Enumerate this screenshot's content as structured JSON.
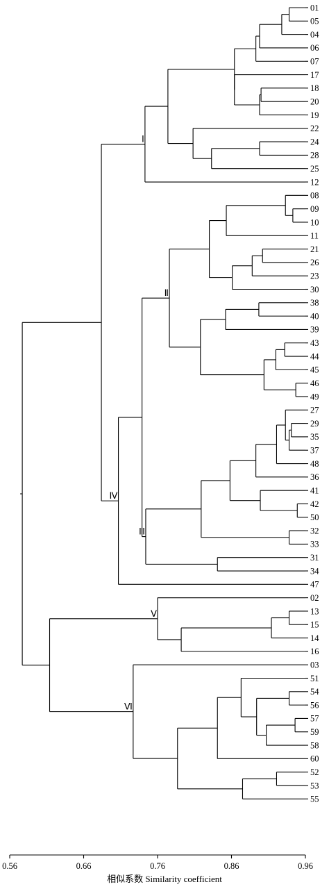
{
  "chart_data": {
    "type": "dendrogram",
    "xlabel": "相似系数 Similarity coefficient",
    "xlim": [
      0.56,
      0.96
    ],
    "ticks": [
      "0.56",
      "0.66",
      "0.76",
      "0.86",
      "0.96"
    ],
    "leaves": [
      "01",
      "05",
      "04",
      "06",
      "07",
      "17",
      "18",
      "20",
      "19",
      "22",
      "24",
      "28",
      "25",
      "12",
      "08",
      "09",
      "10",
      "11",
      "21",
      "26",
      "23",
      "30",
      "38",
      "40",
      "39",
      "43",
      "44",
      "45",
      "46",
      "49",
      "27",
      "29",
      "35",
      "37",
      "48",
      "36",
      "41",
      "42",
      "50",
      "32",
      "33",
      "31",
      "34",
      "47",
      "02",
      "13",
      "15",
      "14",
      "16",
      "03",
      "51",
      "54",
      "56",
      "57",
      "59",
      "58",
      "60",
      "52",
      "53",
      "55"
    ],
    "clusters": [
      {
        "label": "Ⅰ",
        "members": [
          "01",
          "05",
          "04",
          "06",
          "07",
          "17",
          "18",
          "20",
          "19",
          "22",
          "24",
          "28",
          "25",
          "12"
        ]
      },
      {
        "label": "Ⅱ",
        "members": [
          "08",
          "09",
          "10",
          "11",
          "21",
          "26",
          "23",
          "30",
          "38",
          "40",
          "39",
          "43",
          "44",
          "45",
          "46",
          "49"
        ]
      },
      {
        "label": "Ⅲ",
        "members": [
          "27",
          "29",
          "35",
          "37",
          "48",
          "36",
          "41",
          "42",
          "50",
          "32",
          "33",
          "31",
          "34"
        ]
      },
      {
        "label": "Ⅳ",
        "members": [
          "47"
        ]
      },
      {
        "label": "Ⅴ",
        "members": [
          "02",
          "13",
          "15",
          "14",
          "16"
        ]
      },
      {
        "label": "Ⅵ",
        "members": [
          "03",
          "51",
          "54",
          "56",
          "57",
          "59",
          "58",
          "60",
          "52",
          "53",
          "55"
        ]
      }
    ],
    "merges": [
      {
        "a": "01",
        "b": "05",
        "sim": 0.938
      },
      {
        "a": "01-05",
        "b": "04",
        "sim": 0.928
      },
      {
        "a": "01-04",
        "b": "06",
        "sim": 0.898
      },
      {
        "a": "01-06",
        "b": "07",
        "sim": 0.893
      },
      {
        "a": "18",
        "b": "20",
        "sim": 0.9
      },
      {
        "a": "18-20",
        "b": "19",
        "sim": 0.898
      },
      {
        "a": "17",
        "b": "18-19",
        "sim": 0.864
      },
      {
        "a": "01-07",
        "b": "17-19",
        "sim": 0.864
      },
      {
        "a": "24",
        "b": "28",
        "sim": 0.898
      },
      {
        "a": "24-28",
        "b": "25",
        "sim": 0.833
      },
      {
        "a": "22",
        "b": "24-25",
        "sim": 0.808
      },
      {
        "a": "01-19",
        "b": "22-25",
        "sim": 0.774
      },
      {
        "a": "01-25",
        "b": "12",
        "sim": 0.743
      },
      {
        "a": "09",
        "b": "10",
        "sim": 0.943
      },
      {
        "a": "08",
        "b": "09-10",
        "sim": 0.933
      },
      {
        "a": "08-10",
        "b": "11",
        "sim": 0.853
      },
      {
        "a": "21",
        "b": "26",
        "sim": 0.902
      },
      {
        "a": "21-26",
        "b": "23",
        "sim": 0.888
      },
      {
        "a": "21-23",
        "b": "30",
        "sim": 0.861
      },
      {
        "a": "08-11",
        "b": "21-30",
        "sim": 0.83
      },
      {
        "a": "38",
        "b": "40",
        "sim": 0.897
      },
      {
        "a": "38-40",
        "b": "39",
        "sim": 0.852
      },
      {
        "a": "43",
        "b": "44",
        "sim": 0.932
      },
      {
        "a": "43-44",
        "b": "45",
        "sim": 0.92
      },
      {
        "a": "46",
        "b": "49",
        "sim": 0.947
      },
      {
        "a": "43-45",
        "b": "46-49",
        "sim": 0.904
      },
      {
        "a": "38-39",
        "b": "43-49",
        "sim": 0.818
      },
      {
        "a": "08-30",
        "b": "38-49",
        "sim": 0.776
      },
      {
        "a": "29",
        "b": "35",
        "sim": 0.941
      },
      {
        "a": "29-35",
        "b": "37",
        "sim": 0.938
      },
      {
        "a": "27",
        "b": "29-37",
        "sim": 0.933
      },
      {
        "a": "27-37",
        "b": "48",
        "sim": 0.921
      },
      {
        "a": "27-48",
        "b": "36",
        "sim": 0.893
      },
      {
        "a": "42",
        "b": "50",
        "sim": 0.949
      },
      {
        "a": "41",
        "b": "42-50",
        "sim": 0.899
      },
      {
        "a": "27-36",
        "b": "41-50",
        "sim": 0.858
      },
      {
        "a": "32",
        "b": "33",
        "sim": 0.938
      },
      {
        "a": "27-50",
        "b": "32-33",
        "sim": 0.819
      },
      {
        "a": "31",
        "b": "34",
        "sim": 0.841
      },
      {
        "a": "27-33",
        "b": "31-34",
        "sim": 0.744
      },
      {
        "a": "08-49",
        "b": "27-34",
        "sim": 0.739
      },
      {
        "a": "08-34",
        "b": "47",
        "sim": 0.707
      },
      {
        "a": "01-12",
        "b": "08-47",
        "sim": 0.684
      },
      {
        "a": "13",
        "b": "15",
        "sim": 0.938
      },
      {
        "a": "13-15",
        "b": "14",
        "sim": 0.914
      },
      {
        "a": "13-14",
        "b": "16",
        "sim": 0.792
      },
      {
        "a": "02",
        "b": "13-16",
        "sim": 0.76
      },
      {
        "a": "54",
        "b": "56",
        "sim": 0.938
      },
      {
        "a": "57",
        "b": "59",
        "sim": 0.946
      },
      {
        "a": "57-59",
        "b": "58",
        "sim": 0.907
      },
      {
        "a": "54-56",
        "b": "57-58",
        "sim": 0.894
      },
      {
        "a": "51",
        "b": "54-58",
        "sim": 0.873
      },
      {
        "a": "51-58",
        "b": "60",
        "sim": 0.841
      },
      {
        "a": "52",
        "b": "53",
        "sim": 0.921
      },
      {
        "a": "52-53",
        "b": "55",
        "sim": 0.875
      },
      {
        "a": "51-60",
        "b": "52-55",
        "sim": 0.787
      },
      {
        "a": "03",
        "b": "51-55",
        "sim": 0.727
      },
      {
        "a": "02-16",
        "b": "03-55",
        "sim": 0.614
      },
      {
        "a": "01-47",
        "b": "02-55",
        "sim": 0.577
      }
    ]
  }
}
